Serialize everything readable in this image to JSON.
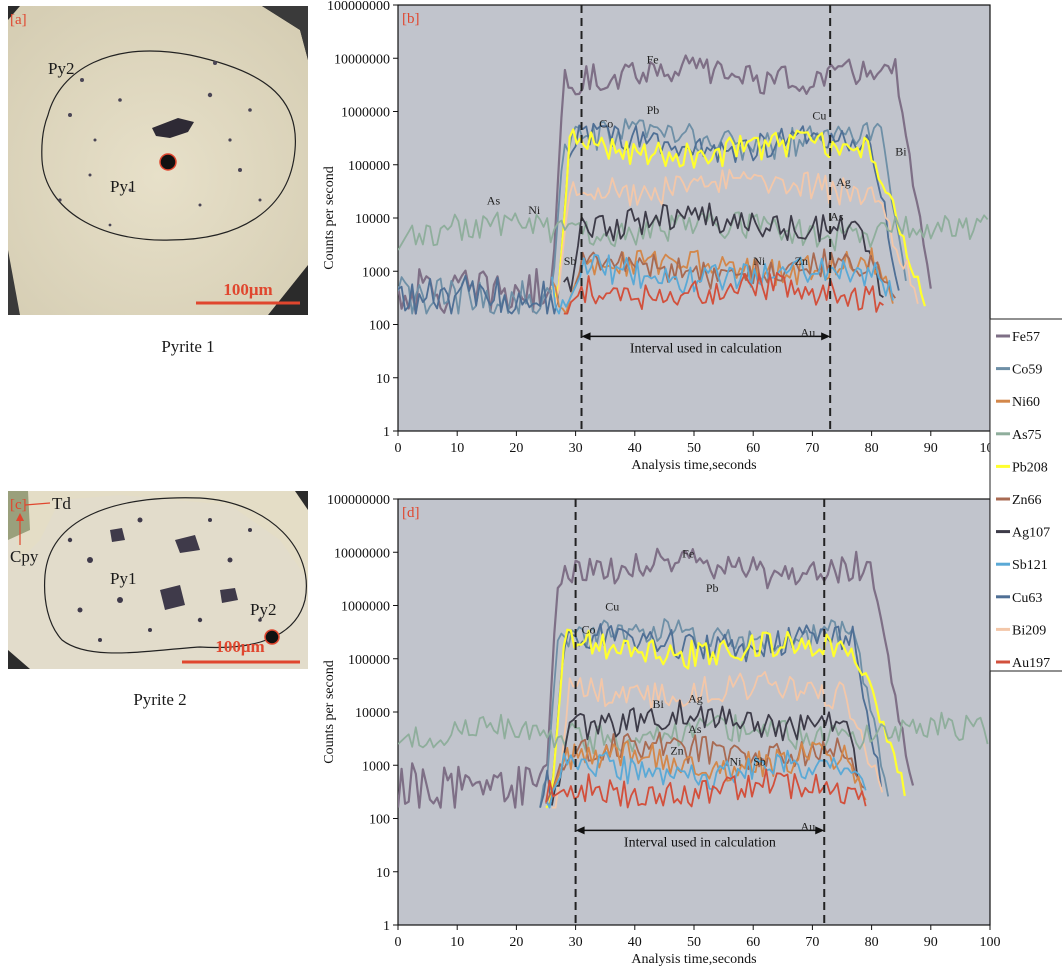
{
  "colors": {
    "Fe57": "#7e6f86",
    "Co59": "#6e8fa6",
    "Ni60": "#d3874a",
    "As75": "#8fae9c",
    "Pb208": "#ffff2e",
    "Zn66": "#a86a52",
    "Ag107": "#3d3b48",
    "Sb121": "#5aa9d6",
    "Cu63": "#4f6f95",
    "Bi209": "#f3c7a9",
    "Au197": "#d2503c",
    "plot_bg": "#c1c4cc",
    "label_red": "#e0462e",
    "scalebar_red": "#e0462e"
  },
  "panels": {
    "a": {
      "tag": "[a]",
      "labels": [
        "Py2",
        "Py1"
      ],
      "scale_text": "100μm",
      "caption": "Pyrite 1"
    },
    "c": {
      "tag": "[c]",
      "labels": [
        "Td",
        "Cpy",
        "Py1",
        "Py2"
      ],
      "scale_text": "100μm",
      "caption": "Pyrite 2"
    }
  },
  "legend": [
    "Fe57",
    "Co59",
    "Ni60",
    "As75",
    "Pb208",
    "Zn66",
    "Ag107",
    "Sb121",
    "Cu63",
    "Bi209",
    "Au197"
  ],
  "chart_data": [
    {
      "type": "line",
      "panel_tag": "[b]",
      "xlabel": "Analysis time,seconds",
      "ylabel": "Counts per second",
      "xlim": [
        0,
        100
      ],
      "ylim": [
        1,
        100000000
      ],
      "yscale": "log",
      "x_ticks": [
        0,
        10,
        20,
        30,
        40,
        50,
        60,
        70,
        80,
        90,
        100
      ],
      "y_ticks": [
        "1",
        "10",
        "100",
        "1000",
        "10000",
        "100000",
        "1000000",
        "10000000",
        "100000000"
      ],
      "interval": {
        "start": 31,
        "end": 73,
        "label": "Interval used in calculation"
      },
      "series": [
        {
          "name": "Fe57",
          "profile": {
            "bg": 400,
            "rise": 26,
            "plat": 5000000,
            "fall": 84,
            "end": 90,
            "start": 0
          }
        },
        {
          "name": "Co59",
          "profile": {
            "bg": 300,
            "rise": 26,
            "plat": 300000,
            "fall": 82,
            "end": 86,
            "start": 0
          }
        },
        {
          "name": "Cu63",
          "profile": {
            "bg": 300,
            "rise": 27,
            "plat": 250000,
            "fall": 80,
            "end": 85,
            "start": 0
          }
        },
        {
          "name": "Pb208",
          "profile": {
            "bg": 300,
            "rise": 27,
            "plat": 200000,
            "fall": 80,
            "end": 89,
            "start": 26
          }
        },
        {
          "name": "Bi209",
          "profile": {
            "bg": 300,
            "rise": 27,
            "plat": 40000,
            "fall": 80,
            "end": 88,
            "start": 26
          }
        },
        {
          "name": "As75",
          "profile": {
            "bg": 2500,
            "rise": 0,
            "plat": 6000,
            "fall": 100,
            "end": 100,
            "start": 0
          }
        },
        {
          "name": "Ag107",
          "profile": {
            "bg": 300,
            "rise": 29,
            "plat": 8000,
            "fall": 78,
            "end": 82,
            "start": 28
          }
        },
        {
          "name": "Ni60",
          "profile": {
            "bg": 300,
            "rise": 29,
            "plat": 1200,
            "fall": 81,
            "end": 84,
            "start": 26
          }
        },
        {
          "name": "Zn66",
          "profile": {
            "bg": 300,
            "rise": 29,
            "plat": 1100,
            "fall": 81,
            "end": 84,
            "start": 30
          }
        },
        {
          "name": "Sb121",
          "profile": {
            "bg": 300,
            "rise": 29,
            "plat": 900,
            "fall": 81,
            "end": 84,
            "start": 26
          }
        },
        {
          "name": "Au197",
          "profile": {
            "bg": 250,
            "rise": 29,
            "plat": 400,
            "fall": 81,
            "end": 82,
            "start": 28
          }
        }
      ],
      "annotations": [
        {
          "text": "Fe",
          "x": 42,
          "y": 8000000
        },
        {
          "text": "Pb",
          "x": 42,
          "y": 900000
        },
        {
          "text": "Co",
          "x": 34,
          "y": 500000
        },
        {
          "text": "Cu",
          "x": 70,
          "y": 700000
        },
        {
          "text": "Bi",
          "x": 84,
          "y": 150000
        },
        {
          "text": "Ag",
          "x": 74,
          "y": 40000
        },
        {
          "text": "As",
          "x": 73,
          "y": 9000
        },
        {
          "text": "As",
          "x": 15,
          "y": 18000
        },
        {
          "text": "Ni",
          "x": 22,
          "y": 12000
        },
        {
          "text": "Sb",
          "x": 28,
          "y": 1300
        },
        {
          "text": "Ni",
          "x": 60,
          "y": 1300
        },
        {
          "text": "Zn",
          "x": 67,
          "y": 1300
        },
        {
          "text": "Au",
          "x": 68,
          "y": 60
        }
      ]
    },
    {
      "type": "line",
      "panel_tag": "[d]",
      "xlabel": "Analysis time,seconds",
      "ylabel": "Counts per second",
      "xlim": [
        0,
        100
      ],
      "ylim": [
        1,
        100000000
      ],
      "yscale": "log",
      "x_ticks": [
        0,
        10,
        20,
        30,
        40,
        50,
        60,
        70,
        80,
        90,
        100
      ],
      "y_ticks": [
        "1",
        "10",
        "100",
        "1000",
        "10000",
        "100000",
        "1000000",
        "10000000",
        "100000000"
      ],
      "interval": {
        "start": 30,
        "end": 72,
        "label": "Interval used in calculation"
      },
      "series": [
        {
          "name": "Fe57",
          "profile": {
            "bg": 400,
            "rise": 25,
            "plat": 5000000,
            "fall": 80,
            "end": 87,
            "start": 0
          }
        },
        {
          "name": "Co59",
          "profile": {
            "bg": 300,
            "rise": 25,
            "plat": 250000,
            "fall": 77,
            "end": 83,
            "start": 24
          }
        },
        {
          "name": "Cu63",
          "profile": {
            "bg": 300,
            "rise": 26,
            "plat": 200000,
            "fall": 77,
            "end": 82,
            "start": 24
          }
        },
        {
          "name": "Pb208",
          "profile": {
            "bg": 300,
            "rise": 26,
            "plat": 150000,
            "fall": 77,
            "end": 86,
            "start": 25
          }
        },
        {
          "name": "Bi209",
          "profile": {
            "bg": 300,
            "rise": 27,
            "plat": 25000,
            "fall": 75,
            "end": 82,
            "start": 26
          }
        },
        {
          "name": "As75",
          "profile": {
            "bg": 2500,
            "rise": 0,
            "plat": 4000,
            "fall": 100,
            "end": 100,
            "start": 0
          }
        },
        {
          "name": "Ag107",
          "profile": {
            "bg": 300,
            "rise": 27,
            "plat": 7000,
            "fall": 76,
            "end": 78,
            "start": 26
          }
        },
        {
          "name": "Zn66",
          "profile": {
            "bg": 300,
            "rise": 26,
            "plat": 1800,
            "fall": 76,
            "end": 79,
            "start": 25
          }
        },
        {
          "name": "Ni60",
          "profile": {
            "bg": 300,
            "rise": 26,
            "plat": 1200,
            "fall": 76,
            "end": 79,
            "start": 25
          }
        },
        {
          "name": "Sb121",
          "profile": {
            "bg": 300,
            "rise": 26,
            "plat": 800,
            "fall": 76,
            "end": 79,
            "start": 25
          }
        },
        {
          "name": "Au197",
          "profile": {
            "bg": 250,
            "rise": 26,
            "plat": 350,
            "fall": 76,
            "end": 79,
            "start": 25
          }
        }
      ],
      "annotations": [
        {
          "text": "Fe",
          "x": 48,
          "y": 8000000
        },
        {
          "text": "Pb",
          "x": 52,
          "y": 1800000
        },
        {
          "text": "Cu",
          "x": 35,
          "y": 800000
        },
        {
          "text": "Co",
          "x": 31,
          "y": 300000
        },
        {
          "text": "Bi",
          "x": 43,
          "y": 12000
        },
        {
          "text": "Ag",
          "x": 49,
          "y": 15000
        },
        {
          "text": "As",
          "x": 49,
          "y": 4000
        },
        {
          "text": "Zn",
          "x": 46,
          "y": 1600
        },
        {
          "text": "Ni",
          "x": 56,
          "y": 1000
        },
        {
          "text": "Sb",
          "x": 60,
          "y": 1000
        },
        {
          "text": "Au",
          "x": 68,
          "y": 60
        }
      ]
    }
  ]
}
